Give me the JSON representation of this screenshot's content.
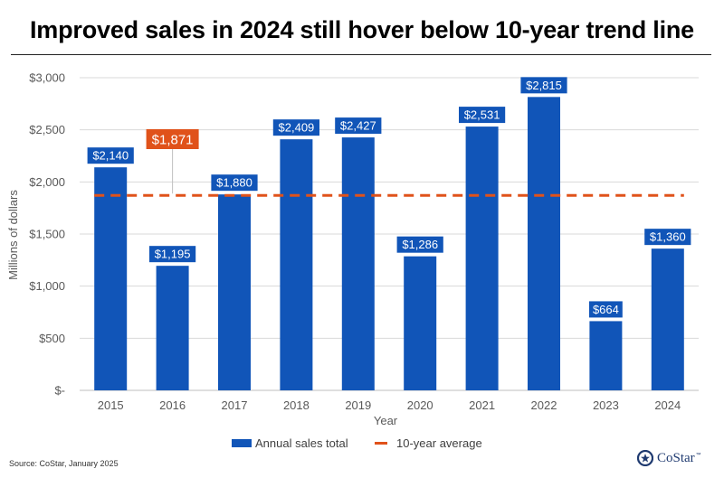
{
  "title": "Improved sales in 2024 still hover below 10-year trend line",
  "source": "Source: CoStar, January 2025",
  "brand": {
    "name": "CoStar",
    "trademark": "™",
    "icon": "costar-logo-icon"
  },
  "colors": {
    "bar": "#1155b8",
    "average": "#e0521a",
    "grid": "#d9d9d9",
    "tick": "#595959"
  },
  "chart_data": {
    "type": "bar",
    "title": "Improved sales in 2024 still hover below 10-year trend line",
    "xlabel": "Year",
    "ylabel": "Millions of dollars",
    "ylim": [
      0,
      3000
    ],
    "yticks": [
      0,
      500,
      1000,
      1500,
      2000,
      2500,
      3000
    ],
    "ytick_labels": [
      "$-",
      "$500",
      "$1,000",
      "$1,500",
      "$2,000",
      "$2,500",
      "$3,000"
    ],
    "categories": [
      "2015",
      "2016",
      "2017",
      "2018",
      "2019",
      "2020",
      "2021",
      "2022",
      "2023",
      "2024"
    ],
    "series": [
      {
        "name": "Annual sales total",
        "values": [
          2140,
          1195,
          1880,
          2409,
          2427,
          1286,
          2531,
          2815,
          664,
          1360
        ],
        "labels": [
          "$2,140",
          "$1,195",
          "$1,880",
          "$2,409",
          "$2,427",
          "$1,286",
          "$2,531",
          "$2,815",
          "$664",
          "$1,360"
        ]
      },
      {
        "name": "10-year average",
        "style": "dashed line",
        "value": 1871,
        "label": "$1,871",
        "label_category": "2016"
      }
    ],
    "grid": true,
    "legend": "bottom-center"
  }
}
